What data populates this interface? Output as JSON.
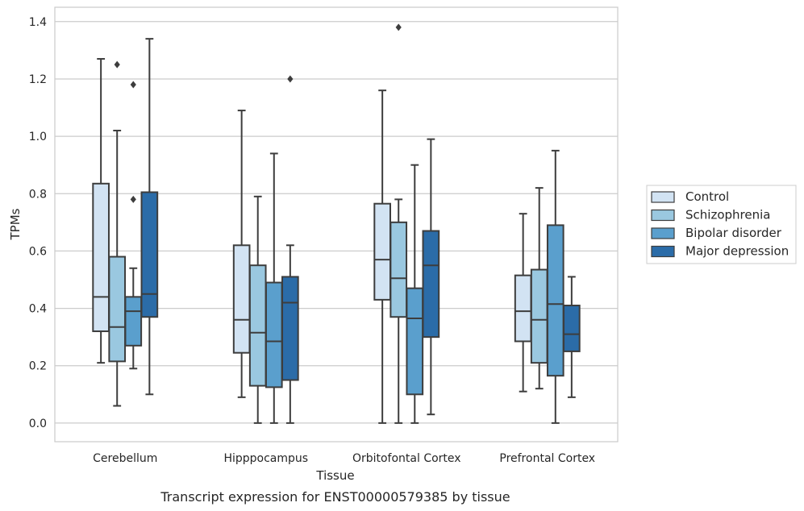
{
  "chart_data": {
    "type": "box",
    "title": "",
    "caption": "Transcript expression for ENST00000579385 by tissue",
    "xlabel": "Tissue",
    "ylabel": "TPMs",
    "ylim": [
      -0.065,
      1.45
    ],
    "yticks": [
      "0.0",
      "0.2",
      "0.4",
      "0.6",
      "0.8",
      "1.0",
      "1.2",
      "1.4"
    ],
    "ytick_values": [
      0.0,
      0.2,
      0.4,
      0.6,
      0.8,
      1.0,
      1.2,
      1.4
    ],
    "categories": [
      "Cerebellum",
      "Hipppocampus",
      "Orbitofontal Cortex",
      "Prefrontal Cortex"
    ],
    "grid": "horizontal",
    "legend_position": "right",
    "series": [
      {
        "name": "Control",
        "color": "#d2e3f3",
        "boxes": [
          {
            "whislo": 0.21,
            "q1": 0.32,
            "med": 0.44,
            "q3": 0.835,
            "whishi": 1.27,
            "fliers": []
          },
          {
            "whislo": 0.09,
            "q1": 0.245,
            "med": 0.36,
            "q3": 0.62,
            "whishi": 1.09,
            "fliers": []
          },
          {
            "whislo": 0.0,
            "q1": 0.43,
            "med": 0.57,
            "q3": 0.765,
            "whishi": 1.16,
            "fliers": []
          },
          {
            "whislo": 0.11,
            "q1": 0.285,
            "med": 0.39,
            "q3": 0.515,
            "whishi": 0.73,
            "fliers": []
          }
        ]
      },
      {
        "name": "Schizophrenia",
        "color": "#9ac8e0",
        "boxes": [
          {
            "whislo": 0.06,
            "q1": 0.215,
            "med": 0.335,
            "q3": 0.58,
            "whishi": 1.02,
            "fliers": [
              1.25
            ]
          },
          {
            "whislo": 0.0,
            "q1": 0.13,
            "med": 0.315,
            "q3": 0.55,
            "whishi": 0.79,
            "fliers": []
          },
          {
            "whislo": 0.0,
            "q1": 0.37,
            "med": 0.505,
            "q3": 0.7,
            "whishi": 0.78,
            "fliers": [
              1.38
            ]
          },
          {
            "whislo": 0.12,
            "q1": 0.21,
            "med": 0.36,
            "q3": 0.535,
            "whishi": 0.82,
            "fliers": []
          }
        ]
      },
      {
        "name": "Bipolar disorder",
        "color": "#5a9fcd",
        "boxes": [
          {
            "whislo": 0.19,
            "q1": 0.27,
            "med": 0.39,
            "q3": 0.44,
            "whishi": 0.54,
            "fliers": [
              0.78,
              1.18
            ]
          },
          {
            "whislo": 0.0,
            "q1": 0.125,
            "med": 0.285,
            "q3": 0.49,
            "whishi": 0.94,
            "fliers": []
          },
          {
            "whislo": 0.0,
            "q1": 0.1,
            "med": 0.365,
            "q3": 0.47,
            "whishi": 0.9,
            "fliers": []
          },
          {
            "whislo": 0.0,
            "q1": 0.165,
            "med": 0.415,
            "q3": 0.69,
            "whishi": 0.95,
            "fliers": []
          }
        ]
      },
      {
        "name": "Major depression",
        "color": "#2b6ca8",
        "boxes": [
          {
            "whislo": 0.1,
            "q1": 0.37,
            "med": 0.45,
            "q3": 0.805,
            "whishi": 1.34,
            "fliers": []
          },
          {
            "whislo": 0.0,
            "q1": 0.15,
            "med": 0.42,
            "q3": 0.51,
            "whishi": 0.62,
            "fliers": [
              1.2
            ]
          },
          {
            "whislo": 0.03,
            "q1": 0.3,
            "med": 0.55,
            "q3": 0.67,
            "whishi": 0.99,
            "fliers": []
          },
          {
            "whislo": 0.09,
            "q1": 0.25,
            "med": 0.31,
            "q3": 0.41,
            "whishi": 0.51,
            "fliers": []
          }
        ]
      }
    ]
  }
}
